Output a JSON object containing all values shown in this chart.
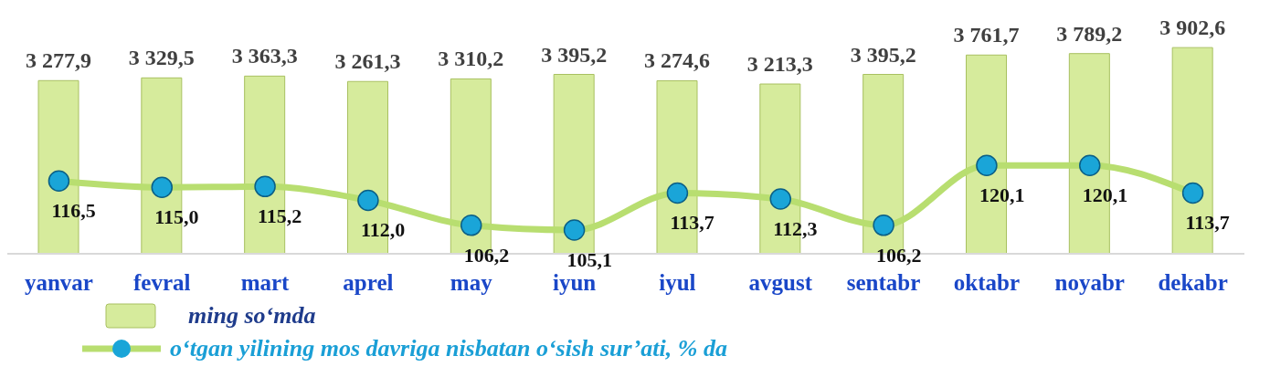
{
  "chart_data": {
    "type": "bar",
    "categories": [
      "yanvar",
      "fevral",
      "mart",
      "aprel",
      "may",
      "iyun",
      "iyul",
      "avgust",
      "sentabr",
      "oktabr",
      "noyabr",
      "dekabr"
    ],
    "series": [
      {
        "name": "ming so‘mda",
        "color": "#d6eb9c",
        "values": [
          3277.9,
          3329.5,
          3363.3,
          3261.3,
          3310.2,
          3395.2,
          3274.6,
          3213.3,
          3395.2,
          3761.7,
          3789.2,
          3902.6
        ],
        "value_labels": [
          "3 277,9",
          "3 329,5",
          "3 363,3",
          "3 261,3",
          "3 310,2",
          "3 395,2",
          "3 274,6",
          "3 213,3",
          "3 395,2",
          "3 761,7",
          "3 789,2",
          "3 902,6"
        ]
      },
      {
        "name": "o‘tgan yilining mos davriga nisbatan o‘sish sur’ati, % da",
        "type": "line",
        "axis": "y2",
        "color": "#b8de70",
        "marker": "circle",
        "values": [
          116.5,
          115.0,
          115.2,
          112.0,
          106.2,
          105.1,
          113.7,
          112.3,
          106.2,
          120.1,
          120.1,
          113.7
        ],
        "value_labels": [
          "116,5",
          "115,0",
          "115,2",
          "112,0",
          "106,2",
          "105,1",
          "113,7",
          "112,3",
          "106,2",
          "120,1",
          "120,1",
          "113,7"
        ]
      }
    ],
    "legend": "bottom left"
  }
}
